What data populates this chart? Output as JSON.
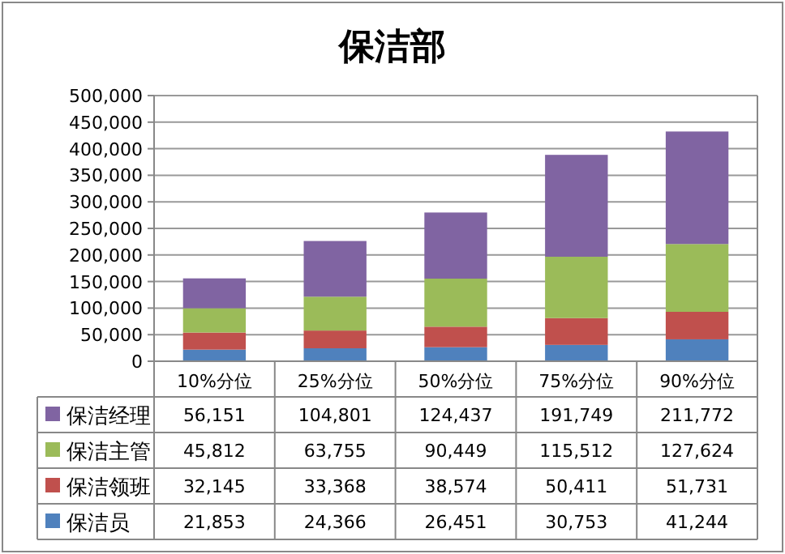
{
  "chart_data": {
    "type": "bar",
    "title": "保洁部",
    "stacked": true,
    "grid": "y",
    "legend": "bottom",
    "categories": [
      "10%分位",
      "25%分位",
      "50%分位",
      "75%分位",
      "90%分位"
    ],
    "ylim": [
      0,
      500000
    ],
    "yticks": [
      {
        "value": 0,
        "label": "0"
      },
      {
        "value": 50000,
        "label": "50,000"
      },
      {
        "value": 100000,
        "label": "100,000"
      },
      {
        "value": 150000,
        "label": "150,000"
      },
      {
        "value": 200000,
        "label": "200,000"
      },
      {
        "value": 250000,
        "label": "250,000"
      },
      {
        "value": 300000,
        "label": "300,000"
      },
      {
        "value": 350000,
        "label": "350,000"
      },
      {
        "value": 400000,
        "label": "400,000"
      },
      {
        "value": 450000,
        "label": "450,000"
      },
      {
        "value": 500000,
        "label": "500,000"
      }
    ],
    "series": [
      {
        "name": "保洁员",
        "color": "#4f81bd",
        "values": [
          21853,
          24366,
          26451,
          30753,
          41244
        ],
        "value_labels": [
          "21,853",
          "24,366",
          "26,451",
          "30,753",
          "41,244"
        ]
      },
      {
        "name": "保洁领班",
        "color": "#c0504d",
        "values": [
          32145,
          33368,
          38574,
          50411,
          51731
        ],
        "value_labels": [
          "32,145",
          "33,368",
          "38,574",
          "50,411",
          "51,731"
        ]
      },
      {
        "name": "保洁主管",
        "color": "#9bbb59",
        "values": [
          45812,
          63755,
          90449,
          115512,
          127624
        ],
        "value_labels": [
          "45,812",
          "63,755",
          "90,449",
          "115,512",
          "127,624"
        ]
      },
      {
        "name": "保洁经理",
        "color": "#8064a2",
        "values": [
          56151,
          104801,
          124437,
          191749,
          211772
        ],
        "value_labels": [
          "56,151",
          "104,801",
          "124,437",
          "191,749",
          "211,772"
        ]
      }
    ]
  }
}
